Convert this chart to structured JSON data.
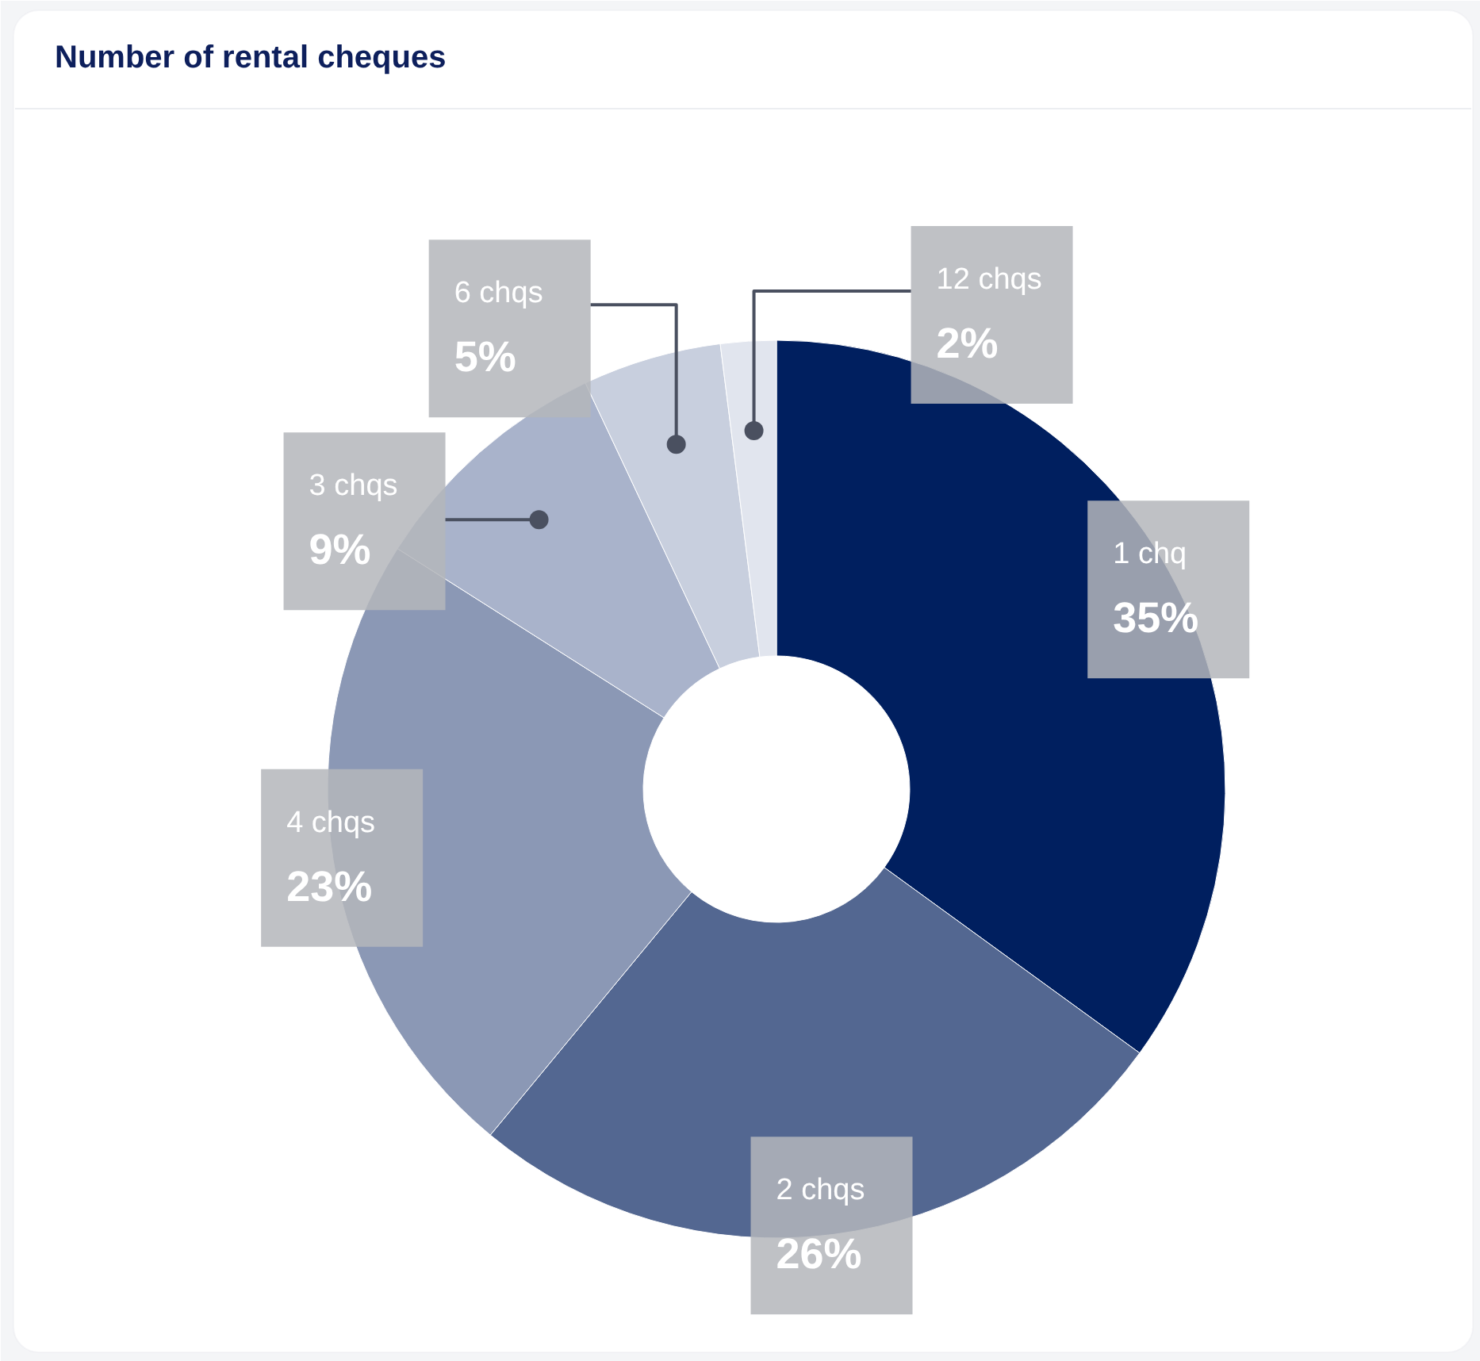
{
  "chart_data": {
    "type": "donut",
    "title": "Number of rental cheques",
    "categories": [
      "1 chq",
      "2 chqs",
      "4 chqs",
      "3 chqs",
      "6 chqs",
      "12 chqs"
    ],
    "values": [
      35,
      26,
      23,
      9,
      5,
      2
    ],
    "colors": [
      "#001f5f",
      "#536791",
      "#8b98b5",
      "#a9b3cb",
      "#c8cfde",
      "#e1e5ee"
    ],
    "value_labels": [
      "35%",
      "26%",
      "23%",
      "9%",
      "5%",
      "2%"
    ]
  }
}
